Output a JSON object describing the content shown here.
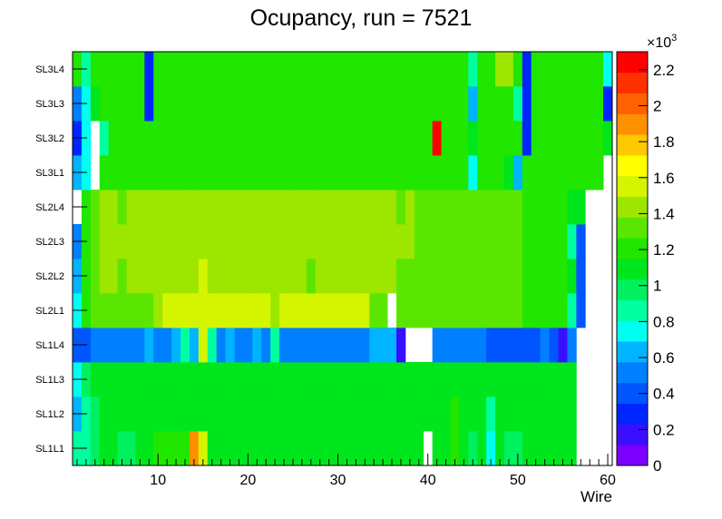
{
  "chart_data": {
    "type": "heatmap",
    "title": "Ocupancy, run = 7521",
    "xlabel": "Wire",
    "ylabel": "",
    "xlim": [
      0.5,
      60.5
    ],
    "x_ticks": [
      "10",
      "20",
      "30",
      "40",
      "50",
      "60"
    ],
    "y_categories": [
      "SL1L1",
      "SL1L2",
      "SL1L3",
      "SL1L4",
      "SL2L1",
      "SL2L2",
      "SL2L3",
      "SL2L4",
      "SL3L1",
      "SL3L2",
      "SL3L3",
      "SL3L4"
    ],
    "colorbar": {
      "exponent_label": "×10",
      "exponent_power": "3",
      "range": [
        0,
        2.3
      ],
      "tick_labels": [
        "0",
        "0.2",
        "0.4",
        "0.6",
        "0.8",
        "1",
        "1.2",
        "1.4",
        "1.6",
        "1.8",
        "2",
        "2.2"
      ],
      "colors": [
        "#7b00ff",
        "#3a0fff",
        "#0026ff",
        "#0055ff",
        "#0080ff",
        "#00b4ff",
        "#00fff0",
        "#00ffa0",
        "#00f060",
        "#00e61c",
        "#20e600",
        "#5ae600",
        "#9ce600",
        "#d4f500",
        "#ffff00",
        "#ffc800",
        "#ff9000",
        "#ff6000",
        "#ff3000",
        "#ff0000"
      ]
    },
    "rows": [
      {
        "layer": "SL1L1",
        "values": [
          0.85,
          0.88,
          1.02,
          1.05,
          1.05,
          1.02,
          1.03,
          1.04,
          1.06,
          1.18,
          1.18,
          1.18,
          1.18,
          1.85,
          1.6,
          1.05,
          1.05,
          1.05,
          1.05,
          1.05,
          1.05,
          1.05,
          1.05,
          1.05,
          1.05,
          1.05,
          1.05,
          1.05,
          1.05,
          1.05,
          1.05,
          1.05,
          1.05,
          1.05,
          1.05,
          1.05,
          1.05,
          1.05,
          1.05,
          null,
          1.05,
          1.05,
          1.18,
          1.05,
          1.0,
          1.05,
          0.8,
          1.05,
          0.95,
          1.0,
          1.05,
          1.05,
          1.05,
          1.05,
          1.05,
          1.05,
          null,
          null,
          null,
          null
        ]
      },
      {
        "layer": "SL1L2",
        "values": [
          0.65,
          0.85,
          1.02,
          1.05,
          1.05,
          1.05,
          1.05,
          1.05,
          1.05,
          1.05,
          1.05,
          1.05,
          1.05,
          1.05,
          1.05,
          1.05,
          1.05,
          1.05,
          1.05,
          1.05,
          1.05,
          1.05,
          1.05,
          1.05,
          1.05,
          1.05,
          1.05,
          1.05,
          1.05,
          1.05,
          1.05,
          1.05,
          1.05,
          1.05,
          1.05,
          1.05,
          1.05,
          1.05,
          1.05,
          1.05,
          1.05,
          1.05,
          1.18,
          1.05,
          1.05,
          1.05,
          0.82,
          1.05,
          1.05,
          1.05,
          1.05,
          1.05,
          1.05,
          1.05,
          1.05,
          1.05,
          null,
          null,
          null,
          null
        ]
      },
      {
        "layer": "SL1L3",
        "values": [
          0.75,
          0.92,
          1.05,
          1.05,
          1.05,
          1.05,
          1.05,
          1.05,
          1.05,
          1.05,
          1.05,
          1.05,
          1.05,
          1.05,
          1.05,
          1.05,
          1.05,
          1.05,
          1.05,
          1.05,
          1.05,
          1.05,
          1.05,
          1.05,
          1.05,
          1.05,
          1.05,
          1.05,
          1.05,
          1.05,
          1.05,
          1.05,
          1.05,
          1.05,
          1.05,
          1.05,
          1.05,
          1.05,
          1.05,
          1.05,
          1.05,
          1.05,
          1.05,
          1.05,
          1.05,
          1.05,
          1.05,
          1.05,
          1.05,
          1.05,
          1.05,
          1.05,
          1.05,
          1.05,
          1.05,
          1.05,
          null,
          null,
          null,
          null
        ]
      },
      {
        "layer": "SL1L4",
        "values": [
          0.42,
          0.42,
          0.55,
          0.55,
          0.55,
          0.55,
          0.55,
          0.55,
          0.65,
          0.55,
          0.55,
          0.65,
          0.82,
          0.65,
          1.58,
          0.82,
          0.55,
          0.65,
          0.55,
          0.55,
          0.65,
          0.55,
          0.82,
          0.55,
          0.55,
          0.55,
          0.55,
          0.55,
          0.55,
          0.55,
          0.55,
          0.55,
          0.55,
          0.65,
          0.65,
          0.62,
          0.12,
          null,
          null,
          null,
          0.55,
          0.55,
          0.55,
          0.55,
          0.55,
          0.55,
          0.42,
          0.42,
          0.42,
          0.42,
          0.42,
          0.42,
          0.55,
          0.42,
          0.12,
          0.55,
          null,
          null,
          null,
          null
        ]
      },
      {
        "layer": "SL2L1",
        "values": [
          0.72,
          1.18,
          1.3,
          1.3,
          1.3,
          1.3,
          1.3,
          1.3,
          1.3,
          1.38,
          1.5,
          1.5,
          1.5,
          1.5,
          1.5,
          1.5,
          1.5,
          1.5,
          1.5,
          1.5,
          1.5,
          1.5,
          1.38,
          1.5,
          1.5,
          1.5,
          1.5,
          1.5,
          1.5,
          1.5,
          1.5,
          1.5,
          1.5,
          1.3,
          1.3,
          null,
          1.3,
          1.3,
          1.3,
          1.3,
          1.3,
          1.3,
          1.3,
          1.3,
          1.3,
          1.3,
          1.3,
          1.3,
          1.3,
          1.3,
          1.22,
          1.22,
          1.22,
          1.22,
          1.22,
          0.82,
          0.42,
          null,
          null,
          null
        ]
      },
      {
        "layer": "SL2L2",
        "values": [
          0.6,
          1.18,
          1.3,
          1.38,
          1.38,
          1.3,
          1.38,
          1.38,
          1.38,
          1.38,
          1.38,
          1.38,
          1.38,
          1.38,
          1.5,
          1.38,
          1.38,
          1.38,
          1.38,
          1.38,
          1.38,
          1.38,
          1.38,
          1.38,
          1.38,
          1.38,
          1.3,
          1.38,
          1.38,
          1.38,
          1.38,
          1.38,
          1.38,
          1.38,
          1.38,
          1.38,
          1.3,
          1.3,
          1.3,
          1.3,
          1.3,
          1.3,
          1.3,
          1.3,
          1.3,
          1.3,
          1.3,
          1.3,
          1.3,
          1.3,
          1.22,
          1.22,
          1.22,
          1.22,
          1.22,
          1.05,
          0.4,
          null,
          null,
          null
        ]
      },
      {
        "layer": "SL2L3",
        "values": [
          0.55,
          1.22,
          1.3,
          1.38,
          1.38,
          1.38,
          1.38,
          1.38,
          1.38,
          1.38,
          1.38,
          1.38,
          1.38,
          1.38,
          1.38,
          1.38,
          1.38,
          1.38,
          1.38,
          1.38,
          1.38,
          1.38,
          1.38,
          1.38,
          1.38,
          1.38,
          1.38,
          1.38,
          1.38,
          1.38,
          1.38,
          1.38,
          1.38,
          1.38,
          1.38,
          1.38,
          1.38,
          1.38,
          1.3,
          1.3,
          1.3,
          1.3,
          1.3,
          1.3,
          1.3,
          1.3,
          1.3,
          1.3,
          1.3,
          1.3,
          1.22,
          1.22,
          1.22,
          1.22,
          1.22,
          0.82,
          0.4,
          null,
          null,
          null
        ]
      },
      {
        "layer": "SL2L4",
        "values": [
          null,
          1.22,
          1.3,
          1.38,
          1.38,
          1.3,
          1.38,
          1.38,
          1.38,
          1.38,
          1.38,
          1.38,
          1.38,
          1.38,
          1.38,
          1.38,
          1.38,
          1.38,
          1.38,
          1.38,
          1.38,
          1.38,
          1.38,
          1.38,
          1.38,
          1.38,
          1.38,
          1.38,
          1.38,
          1.38,
          1.38,
          1.38,
          1.38,
          1.38,
          1.38,
          1.38,
          1.3,
          1.38,
          1.3,
          1.3,
          1.3,
          1.3,
          1.3,
          1.3,
          1.3,
          1.3,
          1.3,
          1.3,
          1.3,
          1.3,
          1.22,
          1.22,
          1.22,
          1.22,
          1.22,
          1.05,
          1.05,
          null,
          null,
          null
        ]
      },
      {
        "layer": "SL3L1",
        "values": [
          0.6,
          0.75,
          null,
          1.22,
          1.22,
          1.22,
          1.22,
          1.22,
          1.22,
          1.22,
          1.22,
          1.22,
          1.22,
          1.22,
          1.22,
          1.22,
          1.22,
          1.22,
          1.22,
          1.22,
          1.22,
          1.22,
          1.22,
          1.22,
          1.22,
          1.22,
          1.22,
          1.22,
          1.22,
          1.22,
          1.22,
          1.22,
          1.22,
          1.22,
          1.22,
          1.22,
          1.22,
          1.22,
          1.22,
          1.22,
          1.22,
          1.22,
          1.22,
          1.22,
          0.75,
          1.22,
          1.22,
          1.22,
          1.05,
          0.65,
          1.22,
          1.22,
          1.22,
          1.22,
          1.22,
          1.22,
          1.22,
          1.22,
          1.22,
          null
        ]
      },
      {
        "layer": "SL3L2",
        "values": [
          0.3,
          0.75,
          null,
          0.85,
          1.22,
          1.22,
          1.22,
          1.22,
          1.22,
          1.22,
          1.22,
          1.22,
          1.22,
          1.22,
          1.22,
          1.22,
          1.22,
          1.22,
          1.22,
          1.22,
          1.22,
          1.22,
          1.22,
          1.22,
          1.22,
          1.22,
          1.22,
          1.22,
          1.22,
          1.22,
          1.22,
          1.22,
          1.22,
          1.22,
          1.22,
          1.22,
          1.22,
          1.22,
          1.22,
          1.22,
          2.25,
          1.22,
          1.22,
          1.22,
          1.05,
          1.22,
          1.22,
          1.22,
          1.22,
          1.22,
          0.3,
          1.22,
          1.22,
          1.22,
          1.22,
          1.22,
          1.22,
          1.22,
          1.22,
          1.05
        ]
      },
      {
        "layer": "SL3L3",
        "values": [
          0.55,
          0.75,
          1.05,
          1.22,
          1.22,
          1.22,
          1.22,
          1.22,
          0.3,
          1.22,
          1.22,
          1.22,
          1.22,
          1.22,
          1.22,
          1.22,
          1.22,
          1.22,
          1.22,
          1.22,
          1.22,
          1.22,
          1.22,
          1.22,
          1.22,
          1.22,
          1.22,
          1.22,
          1.22,
          1.22,
          1.22,
          1.22,
          1.22,
          1.22,
          1.22,
          1.22,
          1.22,
          1.22,
          1.22,
          1.22,
          1.22,
          1.22,
          1.22,
          1.22,
          0.65,
          1.22,
          1.22,
          1.22,
          1.22,
          0.82,
          0.3,
          1.22,
          1.22,
          1.22,
          1.22,
          1.22,
          1.22,
          1.22,
          1.22,
          0.3
        ]
      },
      {
        "layer": "SL3L4",
        "values": [
          1.22,
          0.82,
          1.22,
          1.22,
          1.22,
          1.22,
          1.22,
          1.22,
          0.3,
          1.22,
          1.22,
          1.22,
          1.22,
          1.22,
          1.22,
          1.22,
          1.22,
          1.22,
          1.22,
          1.22,
          1.22,
          1.22,
          1.22,
          1.22,
          1.22,
          1.22,
          1.22,
          1.22,
          1.22,
          1.22,
          1.22,
          1.22,
          1.22,
          1.22,
          1.22,
          1.22,
          1.22,
          1.22,
          1.22,
          1.22,
          1.22,
          1.22,
          1.22,
          1.22,
          0.85,
          1.22,
          1.22,
          1.38,
          1.38,
          1.22,
          0.3,
          1.22,
          1.22,
          1.22,
          1.22,
          1.22,
          1.22,
          1.22,
          1.22,
          0.75
        ]
      }
    ]
  }
}
